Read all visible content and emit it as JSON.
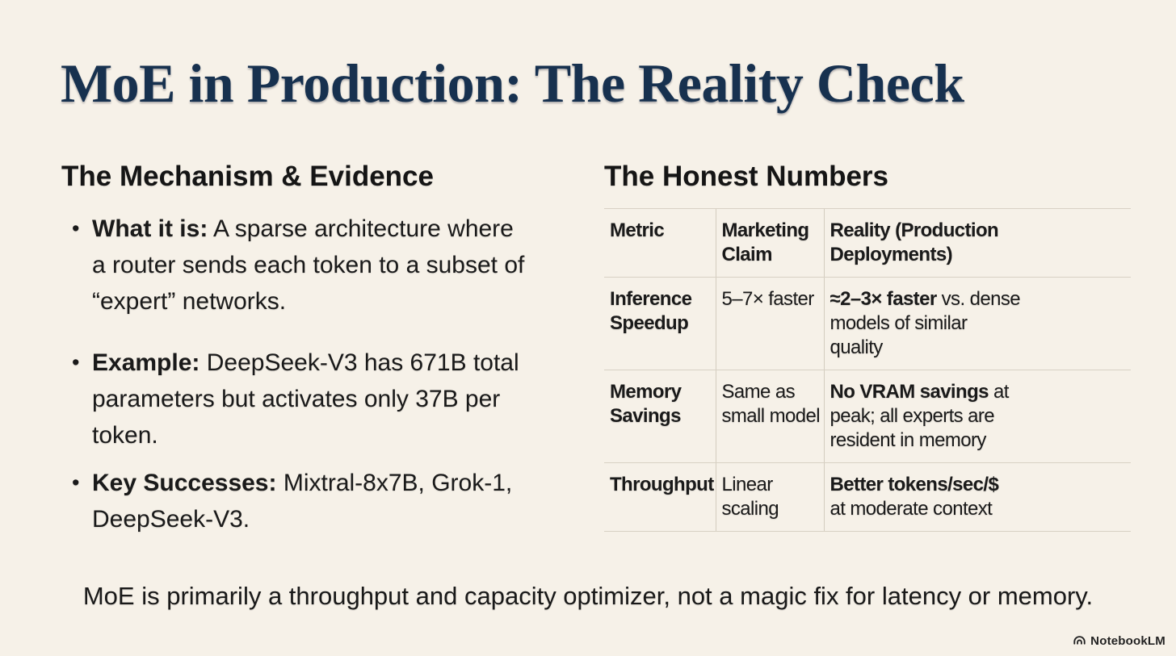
{
  "slide": {
    "title": "MoE in Production: The Reality Check",
    "footer": "MoE is primarily a throughput and capacity optimizer, not a magic fix for latency or memory.",
    "brand": "NotebookLM",
    "colors": {
      "background": "#f6f1e8",
      "title": "#17314f",
      "text": "#1a1a1a",
      "table_line": "#d8d1c4"
    }
  },
  "left": {
    "heading": "The Mechanism & Evidence",
    "bullets": [
      {
        "lines": [
          [
            {
              "t": "What it is:",
              "b": true
            },
            {
              "t": " A sparse architecture where"
            }
          ],
          [
            {
              "t": "a router sends each token to a subset of"
            }
          ],
          [
            {
              "t": "“expert” networks."
            }
          ]
        ]
      },
      {
        "lines": [
          [
            {
              "t": "Example:",
              "b": true
            },
            {
              "t": " DeepSeek-V3 has 671B total"
            }
          ],
          [
            {
              "t": "parameters but activates only 37B per"
            }
          ],
          [
            {
              "t": "token."
            }
          ]
        ]
      },
      {
        "lines": [
          [
            {
              "t": "Key Successes:",
              "b": true
            },
            {
              "t": " Mixtral-8x7B, Grok-1,"
            }
          ],
          [
            {
              "t": "DeepSeek-V3."
            }
          ]
        ]
      }
    ]
  },
  "right": {
    "heading": "The Honest Numbers",
    "table": {
      "header": [
        {
          "lines": [
            [
              {
                "t": "Metric"
              }
            ]
          ]
        },
        {
          "lines": [
            [
              {
                "t": "Marketing"
              }
            ],
            [
              {
                "t": "Claim"
              }
            ]
          ]
        },
        {
          "lines": [
            [
              {
                "t": "Reality (Production"
              }
            ],
            [
              {
                "t": "Deployments)"
              }
            ]
          ]
        }
      ],
      "rows": [
        [
          {
            "lines": [
              [
                {
                  "t": "Inference"
                }
              ],
              [
                {
                  "t": "Speedup"
                }
              ]
            ]
          },
          {
            "lines": [
              [
                {
                  "t": "5–7× faster"
                }
              ]
            ]
          },
          {
            "lines": [
              [
                {
                  "t": "≈2–3× faster",
                  "b": true
                },
                {
                  "t": " vs. dense"
                }
              ],
              [
                {
                  "t": "models of similar"
                }
              ],
              [
                {
                  "t": "quality"
                }
              ]
            ]
          }
        ],
        [
          {
            "lines": [
              [
                {
                  "t": "Memory"
                }
              ],
              [
                {
                  "t": "Savings"
                }
              ]
            ]
          },
          {
            "lines": [
              [
                {
                  "t": "Same as"
                }
              ],
              [
                {
                  "t": "small model"
                }
              ]
            ]
          },
          {
            "lines": [
              [
                {
                  "t": "No VRAM savings",
                  "b": true
                },
                {
                  "t": " at"
                }
              ],
              [
                {
                  "t": "peak; all experts are"
                }
              ],
              [
                {
                  "t": "resident in memory"
                }
              ]
            ]
          }
        ],
        [
          {
            "lines": [
              [
                {
                  "t": "Throughput"
                }
              ]
            ]
          },
          {
            "lines": [
              [
                {
                  "t": "Linear"
                }
              ],
              [
                {
                  "t": "scaling"
                }
              ]
            ]
          },
          {
            "lines": [
              [
                {
                  "t": "Better tokens/sec/$",
                  "b": true
                }
              ],
              [
                {
                  "t": "at moderate context"
                }
              ]
            ]
          }
        ]
      ]
    }
  }
}
